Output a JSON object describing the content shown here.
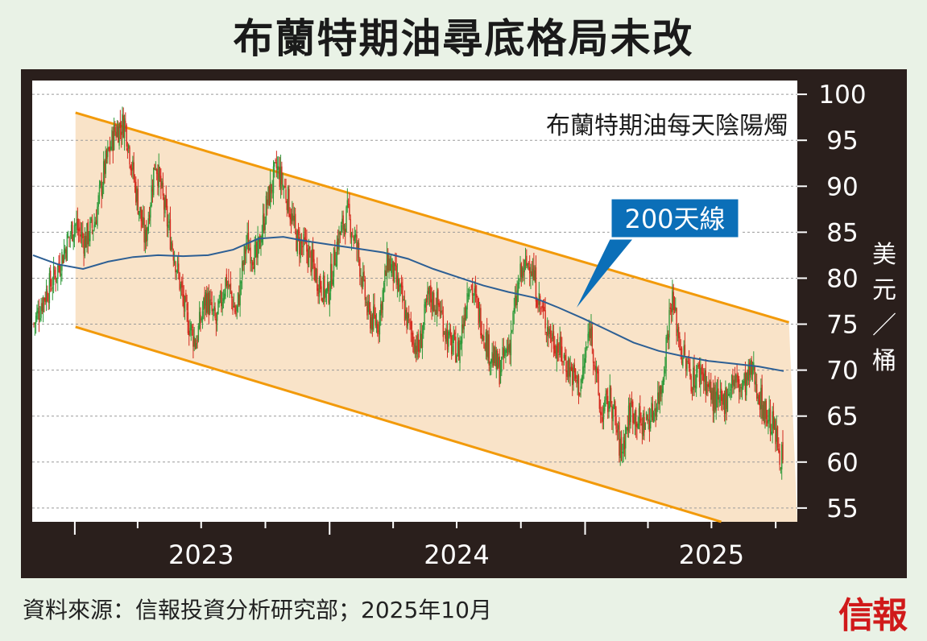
{
  "title": "布蘭特期油尋底格局未改",
  "source": "資料來源：信報投資分析研究部；2025年10月",
  "logo": "信報",
  "chart_data": {
    "type": "candlestick",
    "subtitle": "布蘭特期油每天陰陽燭",
    "ylabel": "美元／桶",
    "annotation": "200天線",
    "y_ticks": [
      55,
      60,
      65,
      70,
      75,
      80,
      85,
      90,
      95,
      100
    ],
    "ylim": [
      53.5,
      101.5
    ],
    "x_ticks": [
      "2023",
      "2024",
      "2025"
    ],
    "grid": true,
    "colors": {
      "up": "#2f9a3a",
      "down": "#d42a1e",
      "ma": "#2d5f94",
      "channel": "#f29a0a",
      "channel_fill": "#f9e3c8"
    },
    "price_path": [
      75,
      78,
      80,
      83,
      86,
      84,
      86,
      92,
      96,
      97,
      90,
      84,
      93,
      87,
      82,
      76,
      73,
      78,
      75,
      80,
      76,
      84,
      82,
      88,
      92,
      89,
      84,
      83,
      80,
      78,
      84,
      87,
      83,
      76,
      75,
      82,
      79,
      75,
      72,
      78,
      77,
      73,
      72,
      80,
      76,
      72,
      70,
      73,
      80,
      82,
      77,
      74,
      72,
      70,
      68,
      75,
      65,
      67,
      61,
      66,
      64,
      65,
      68,
      78,
      72,
      69,
      70,
      67,
      66,
      69,
      68,
      70,
      66,
      64,
      60
    ],
    "ma_path": [
      82.5,
      81.5,
      81.0,
      81.8,
      82.3,
      82.5,
      82.4,
      82.5,
      83.1,
      84.3,
      84.5,
      84.0,
      83.6,
      83.2,
      82.8,
      82.1,
      81.0,
      80.1,
      79.2,
      78.5,
      77.9,
      76.8,
      75.6,
      74.3,
      73.0,
      72.1,
      71.5,
      71.0,
      70.7,
      70.4,
      69.9
    ],
    "channel_upper": [
      {
        "x": "2023-01-02",
        "y": 98
      },
      {
        "x": "2025-10-20",
        "y": 75.2
      }
    ],
    "channel_lower": [
      {
        "x": "2023-01-02",
        "y": 74.7
      },
      {
        "x": "2025-07-15",
        "y": 53.5
      }
    ]
  }
}
